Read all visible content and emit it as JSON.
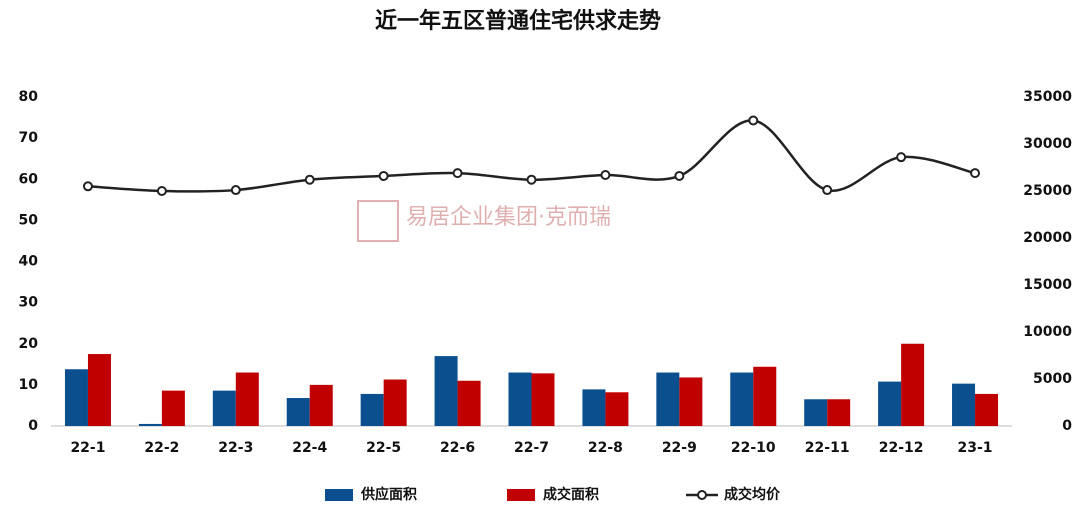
{
  "chart_data": {
    "type": "bar-line",
    "title": "近一年五区普通住宅供求走势",
    "watermark": "易居企业集团·克而瑞",
    "categories": [
      "22-1",
      "22-2",
      "22-3",
      "22-4",
      "22-5",
      "22-6",
      "22-7",
      "22-8",
      "22-9",
      "22-10",
      "22-11",
      "22-12",
      "23-1"
    ],
    "series": [
      {
        "name": "供应面积",
        "type": "bar",
        "color": "#0b4f8f",
        "values": [
          13.8,
          0.5,
          8.6,
          6.8,
          7.8,
          17,
          13,
          8.9,
          13,
          13,
          6.5,
          10.8,
          10.3
        ]
      },
      {
        "name": "成交面积",
        "type": "bar",
        "color": "#c00000",
        "values": [
          17.5,
          8.6,
          13,
          10,
          11.3,
          11,
          12.8,
          8.2,
          11.8,
          14.4,
          6.5,
          20,
          7.8
        ]
      },
      {
        "name": "成交均价",
        "type": "line",
        "axis": "y2",
        "color": "#222222",
        "values": [
          25500,
          25000,
          25100,
          26200,
          26600,
          26900,
          26200,
          26700,
          26600,
          32500,
          25100,
          28600,
          26900
        ]
      }
    ],
    "ylim": [
      0,
      80
    ],
    "yticks": [
      0,
      10,
      20,
      30,
      40,
      50,
      60,
      70,
      80
    ],
    "y2lim": [
      0,
      35000
    ],
    "y2ticks": [
      0,
      5000,
      10000,
      15000,
      20000,
      25000,
      30000,
      35000
    ],
    "grid": false,
    "legend": "bottom"
  }
}
